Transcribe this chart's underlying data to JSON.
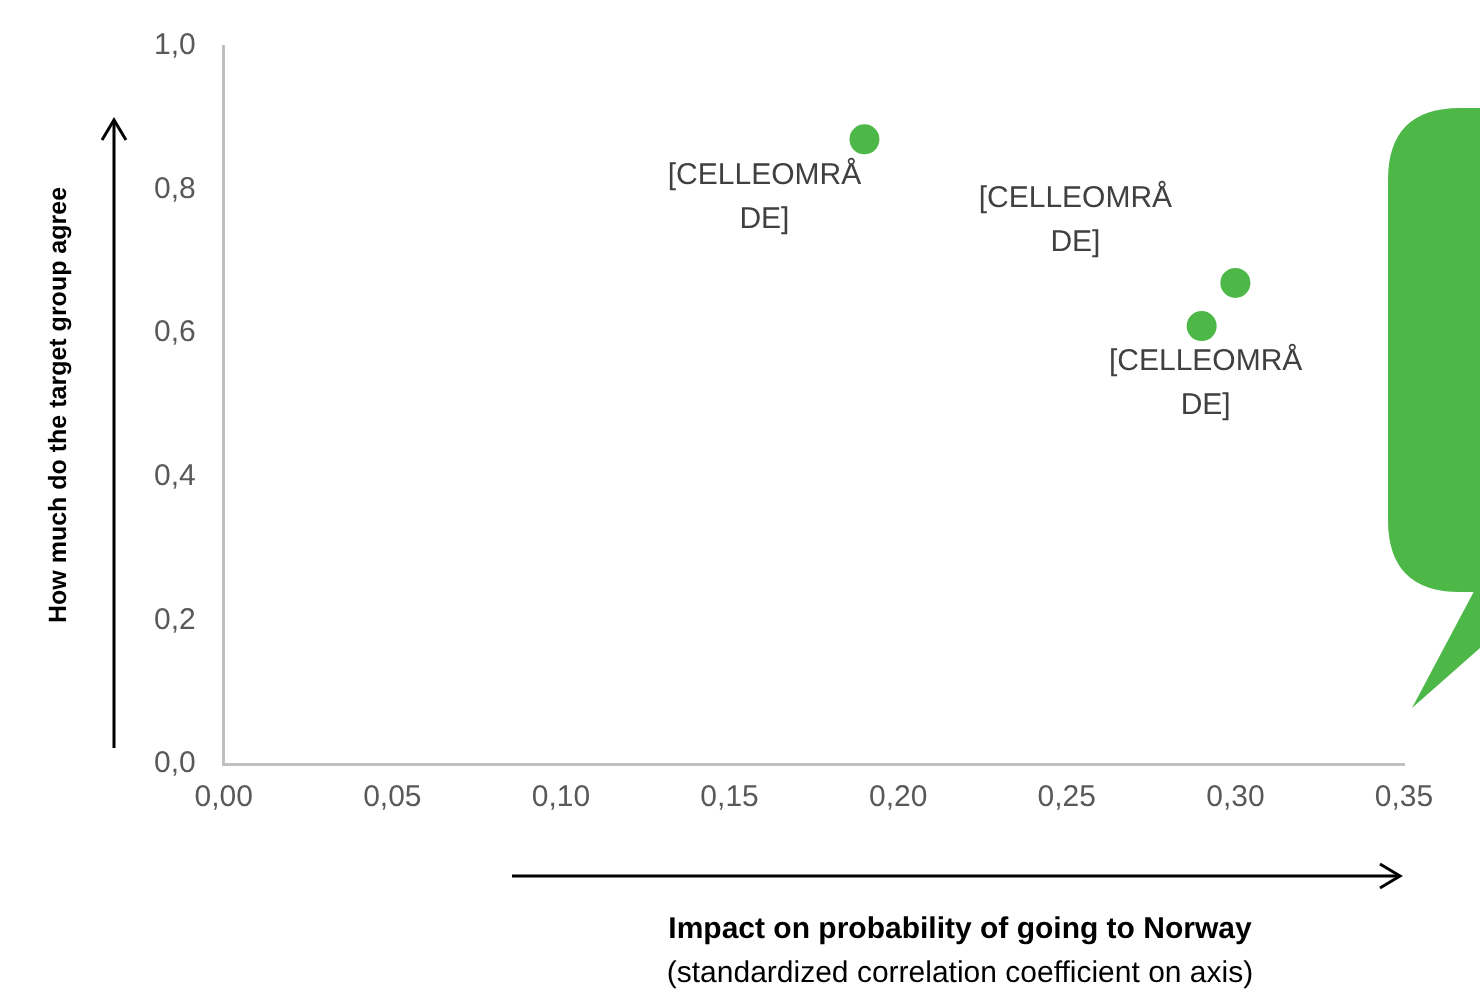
{
  "chart_data": {
    "type": "scatter",
    "xlabel": "Impact on probability of going to Norway",
    "ylabel": "How much do the target group agree",
    "annotations": [
      "(standardized correlation coefficient on axis)"
    ],
    "series": [
      {
        "color": "#4db848",
        "x": [
          0.19,
          0.3,
          0.29
        ],
        "values": [
          0.87,
          0.67,
          0.61
        ],
        "value_labels": [
          "[CELLEOMRÅDE]",
          "[CELLEOMRÅDE]",
          "[CELLEOMRÅDE]"
        ]
      }
    ],
    "xlim": [
      0,
      0.35
    ],
    "xticks": [
      {
        "value": 0,
        "label": "0,00"
      },
      {
        "value": 0.05,
        "label": "0,05"
      },
      {
        "value": 0.1,
        "label": "0,10"
      },
      {
        "value": 0.15,
        "label": "0,15"
      },
      {
        "value": 0.2,
        "label": "0,20"
      },
      {
        "value": 0.25,
        "label": "0,25"
      },
      {
        "value": 0.3,
        "label": "0,30"
      },
      {
        "value": 0.35,
        "label": "0,35"
      }
    ],
    "ylim": [
      0,
      1
    ],
    "yticks": [
      {
        "value": 0,
        "label": "0,0"
      },
      {
        "value": 0.2,
        "label": "0,2"
      },
      {
        "value": 0.4,
        "label": "0,4"
      },
      {
        "value": 0.6,
        "label": "0,6"
      },
      {
        "value": 0.8,
        "label": "0,8"
      },
      {
        "value": 1,
        "label": "1,0"
      }
    ],
    "grid": false,
    "legend": false,
    "marker": "circle"
  }
}
